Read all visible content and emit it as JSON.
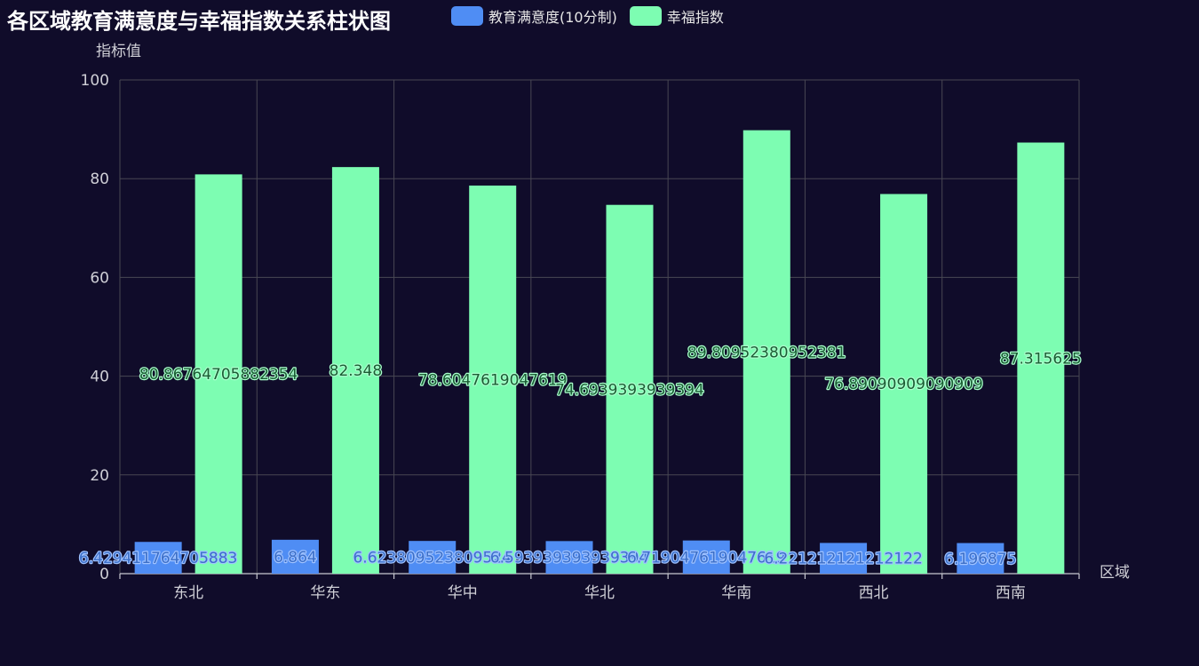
{
  "title": "各区域教育满意度与幸福指数关系柱状图",
  "colors": {
    "edu": "#4f8df4",
    "hap": "#7dfdb2",
    "background": "#100c2a"
  },
  "chart_data": {
    "type": "bar",
    "title": "各区域教育满意度与幸福指数关系柱状图",
    "xlabel": "区域",
    "ylabel": "指标值",
    "ylim": [
      0,
      100
    ],
    "yticks": [
      0,
      20,
      40,
      60,
      80,
      100
    ],
    "grid": true,
    "legend_position": "top",
    "categories": [
      "东北",
      "华东",
      "华中",
      "华北",
      "华南",
      "西北",
      "西南"
    ],
    "series": [
      {
        "name": "教育满意度(10分制)",
        "color": "#4f8df4",
        "values": [
          6.429411764705883,
          6.864,
          6.623809523809524,
          6.593939393939394,
          6.719047619047619,
          6.221212121212122,
          6.196875
        ],
        "labels": [
          "6.429411764705883",
          "6.864",
          "6.623809523809524",
          "6.593939393939394",
          "6.719047619047619",
          "6.221212121212122",
          "6.196875"
        ]
      },
      {
        "name": "幸福指数",
        "color": "#7dfdb2",
        "values": [
          80.86764705882354,
          82.348,
          78.6047619047619,
          74.6939393939394,
          89.80952380952381,
          76.89090909090909,
          87.315625
        ],
        "labels": [
          "80.86764705882354",
          "82.348",
          "78.6047619047619",
          "74.6939393939394",
          "89.80952380952381",
          "76.89090909090909",
          "87.315625"
        ]
      }
    ]
  }
}
